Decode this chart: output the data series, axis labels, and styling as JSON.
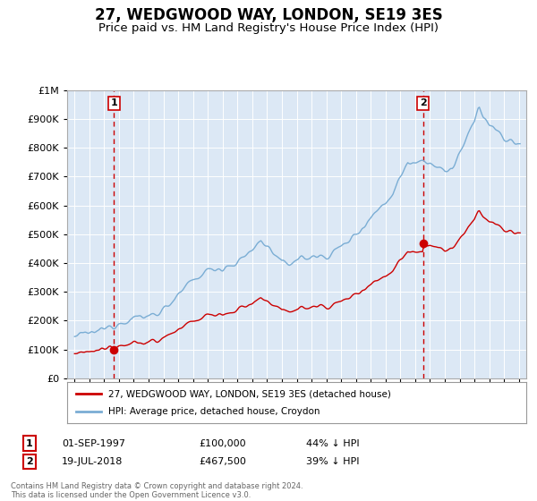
{
  "title": "27, WEDGWOOD WAY, LONDON, SE19 3ES",
  "subtitle": "Price paid vs. HM Land Registry's House Price Index (HPI)",
  "legend_line1": "27, WEDGWOOD WAY, LONDON, SE19 3ES (detached house)",
  "legend_line2": "HPI: Average price, detached house, Croydon",
  "sale1_date_label": "01-SEP-1997",
  "sale1_year": 1997.67,
  "sale1_price": 100000,
  "sale2_date_label": "19-JUL-2018",
  "sale2_year": 2018.54,
  "sale2_price": 467500,
  "sale1_pct": "44% ↓ HPI",
  "sale2_pct": "39% ↓ HPI",
  "footnote1": "Contains HM Land Registry data © Crown copyright and database right 2024.",
  "footnote2": "This data is licensed under the Open Government Licence v3.0.",
  "xlim": [
    1994.5,
    2025.5
  ],
  "ylim": [
    0,
    1000000
  ],
  "plot_bg": "#dce8f5",
  "red_color": "#cc0000",
  "blue_color": "#7aadd4",
  "grid_color": "#ffffff",
  "title_fontsize": 12,
  "subtitle_fontsize": 9.5
}
